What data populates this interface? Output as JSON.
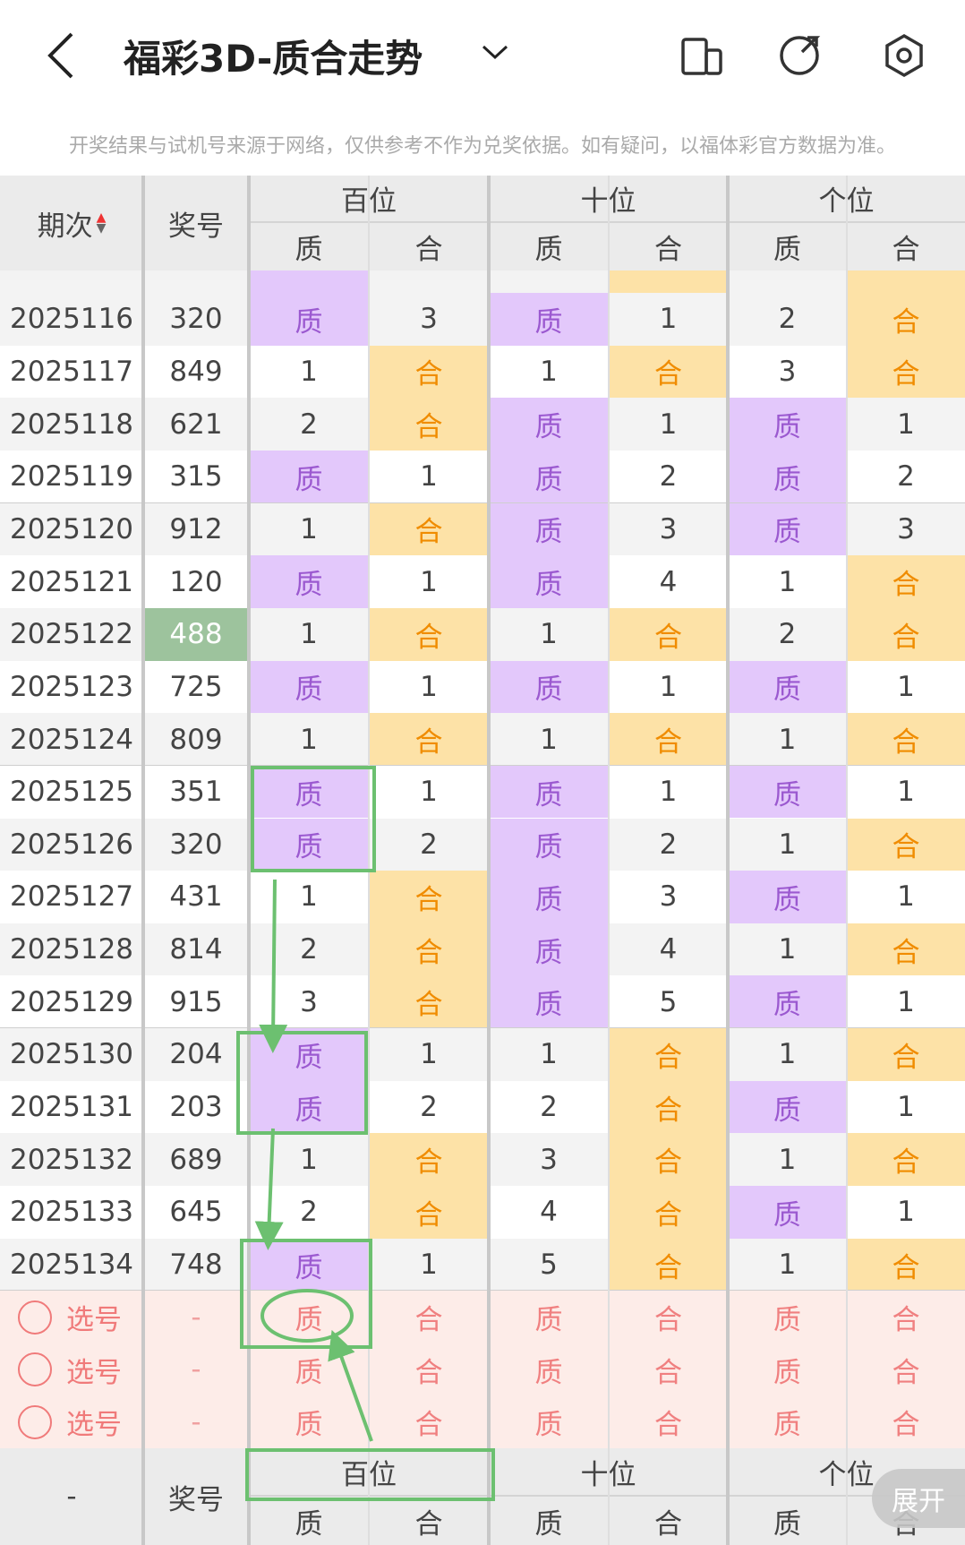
{
  "header": {
    "title": "福彩3D-质合走势"
  },
  "notice": "开奖结果与试机号来源于网络，仅供参考不作为兑奖依据。如有疑问，以福体彩官方数据为准。",
  "table": {
    "columns": {
      "period": "期次",
      "number": "奖号",
      "groups": [
        "百位",
        "十位",
        "个位"
      ],
      "sub": [
        "质",
        "合"
      ]
    },
    "rows": [
      {
        "period": "2025116",
        "number": "320",
        "cells": [
          "质",
          "3",
          "质",
          "1",
          "2",
          "合"
        ]
      },
      {
        "period": "2025117",
        "number": "849",
        "cells": [
          "1",
          "合",
          "1",
          "合",
          "3",
          "合"
        ]
      },
      {
        "period": "2025118",
        "number": "621",
        "cells": [
          "2",
          "合",
          "质",
          "1",
          "质",
          "1"
        ]
      },
      {
        "period": "2025119",
        "number": "315",
        "cells": [
          "质",
          "1",
          "质",
          "2",
          "质",
          "2"
        ]
      },
      {
        "period": "2025120",
        "number": "912",
        "cells": [
          "1",
          "合",
          "质",
          "3",
          "质",
          "3"
        ]
      },
      {
        "period": "2025121",
        "number": "120",
        "cells": [
          "质",
          "1",
          "质",
          "4",
          "1",
          "合"
        ]
      },
      {
        "period": "2025122",
        "number": "488",
        "highlight": true,
        "cells": [
          "1",
          "合",
          "1",
          "合",
          "2",
          "合"
        ]
      },
      {
        "period": "2025123",
        "number": "725",
        "cells": [
          "质",
          "1",
          "质",
          "1",
          "质",
          "1"
        ]
      },
      {
        "period": "2025124",
        "number": "809",
        "cells": [
          "1",
          "合",
          "1",
          "合",
          "1",
          "合"
        ]
      },
      {
        "period": "2025125",
        "number": "351",
        "cells": [
          "质",
          "1",
          "质",
          "1",
          "质",
          "1"
        ]
      },
      {
        "period": "2025126",
        "number": "320",
        "cells": [
          "质",
          "2",
          "质",
          "2",
          "1",
          "合"
        ]
      },
      {
        "period": "2025127",
        "number": "431",
        "cells": [
          "1",
          "合",
          "质",
          "3",
          "质",
          "1"
        ]
      },
      {
        "period": "2025128",
        "number": "814",
        "cells": [
          "2",
          "合",
          "质",
          "4",
          "1",
          "合"
        ]
      },
      {
        "period": "2025129",
        "number": "915",
        "cells": [
          "3",
          "合",
          "质",
          "5",
          "质",
          "1"
        ]
      },
      {
        "period": "2025130",
        "number": "204",
        "cells": [
          "质",
          "1",
          "1",
          "合",
          "1",
          "合"
        ]
      },
      {
        "period": "2025131",
        "number": "203",
        "cells": [
          "质",
          "2",
          "2",
          "合",
          "质",
          "1"
        ]
      },
      {
        "period": "2025132",
        "number": "689",
        "cells": [
          "1",
          "合",
          "3",
          "合",
          "1",
          "合"
        ]
      },
      {
        "period": "2025133",
        "number": "645",
        "cells": [
          "2",
          "合",
          "4",
          "合",
          "质",
          "1"
        ]
      },
      {
        "period": "2025134",
        "number": "748",
        "cells": [
          "质",
          "1",
          "5",
          "合",
          "1",
          "合"
        ]
      }
    ],
    "select_rows": [
      {
        "label": "选号",
        "number": "-",
        "cells": [
          "质",
          "合",
          "质",
          "合",
          "质",
          "合"
        ]
      },
      {
        "label": "选号",
        "number": "-",
        "cells": [
          "质",
          "合",
          "质",
          "合",
          "质",
          "合"
        ]
      },
      {
        "label": "选号",
        "number": "-",
        "cells": [
          "质",
          "合",
          "质",
          "合",
          "质",
          "合"
        ]
      }
    ],
    "footer": {
      "period": "-"
    }
  },
  "expand_button": "展开"
}
